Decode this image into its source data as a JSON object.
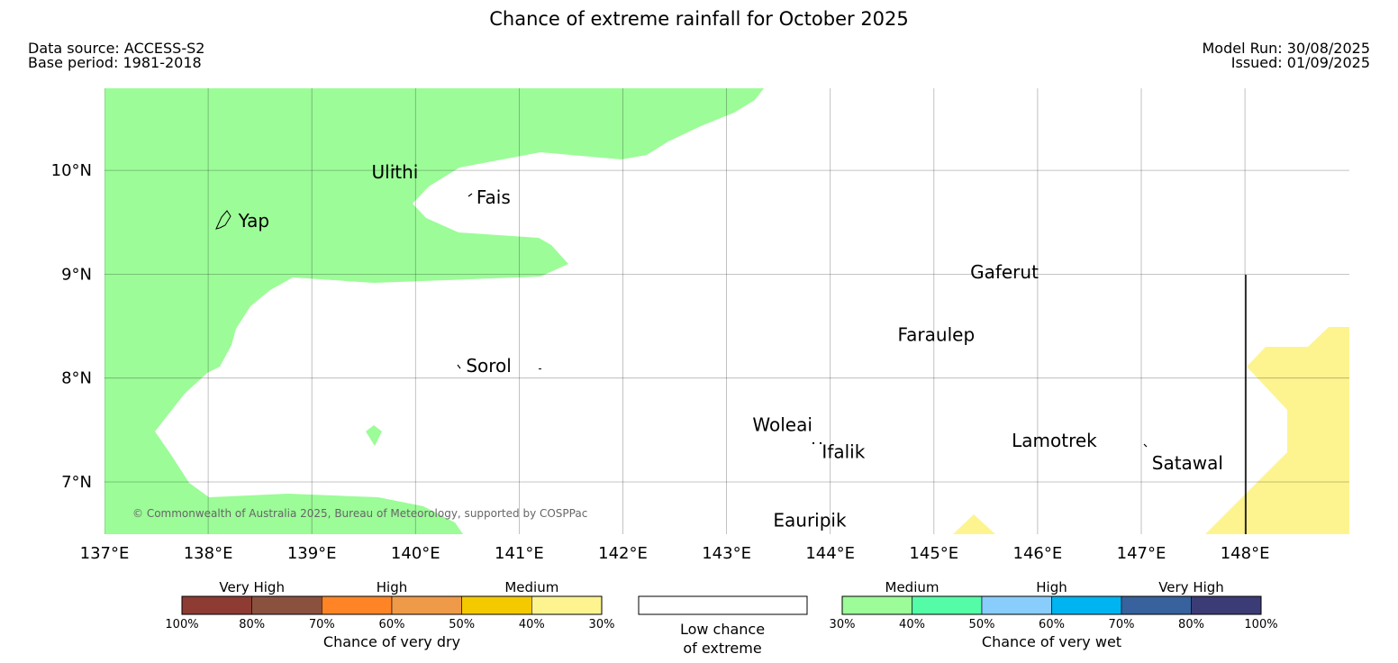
{
  "title": "Chance of extreme rainfall for October 2025",
  "source": {
    "data_source": "Data source: ACCESS-S2",
    "base_period": "Base period: 1981-2018",
    "model_run": "Model Run: 30/08/2025",
    "issued": "Issued: 01/09/2025"
  },
  "map": {
    "lon_range": [
      137,
      149
    ],
    "lat_range": [
      6.5,
      10.8
    ],
    "lon_ticks": [
      {
        "value": 137,
        "label": "137°E"
      },
      {
        "value": 138,
        "label": "138°E"
      },
      {
        "value": 139,
        "label": "139°E"
      },
      {
        "value": 140,
        "label": "140°E"
      },
      {
        "value": 141,
        "label": "141°E"
      },
      {
        "value": 142,
        "label": "142°E"
      },
      {
        "value": 143,
        "label": "143°E"
      },
      {
        "value": 144,
        "label": "144°E"
      },
      {
        "value": 145,
        "label": "145°E"
      },
      {
        "value": 146,
        "label": "146°E"
      },
      {
        "value": 147,
        "label": "147°E"
      },
      {
        "value": 148,
        "label": "148°E"
      }
    ],
    "lat_ticks": [
      {
        "value": 10,
        "label": "10°N"
      },
      {
        "value": 9,
        "label": "9°N"
      },
      {
        "value": 8,
        "label": "8°N"
      },
      {
        "value": 7,
        "label": "7°N"
      }
    ],
    "places": [
      {
        "name": "Yap",
        "lon": 138.1,
        "lat": 9.5
      },
      {
        "name": "Ulithi",
        "lon": 139.75,
        "lat": 10.0
      },
      {
        "name": "Fais",
        "lon": 140.5,
        "lat": 9.75
      },
      {
        "name": "Gaferut",
        "lon": 145.35,
        "lat": 9.02
      },
      {
        "name": "Faraulep",
        "lon": 144.65,
        "lat": 8.42
      },
      {
        "name": "Sorol",
        "lon": 140.4,
        "lat": 8.12
      },
      {
        "name": "Woleai",
        "lon": 143.25,
        "lat": 7.55
      },
      {
        "name": "Ifalik",
        "lon": 143.85,
        "lat": 7.3
      },
      {
        "name": "Lamotrek",
        "lon": 145.75,
        "lat": 7.4
      },
      {
        "name": "Satawal",
        "lon": 147.05,
        "lat": 7.2
      },
      {
        "name": "Eauripik",
        "lon": 143.45,
        "lat": 6.63
      }
    ],
    "copyright": "© Commonwealth of Australia 2025, Bureau of Meteorology, supported by COSPPac",
    "colors": {
      "wet_medium": "#9cfc98",
      "dry_medium": "#fdf48f",
      "land_outline": "#000000"
    }
  },
  "legend": {
    "dry": {
      "groups": [
        "Very High",
        "High",
        "Medium"
      ],
      "colors": [
        "#8d3b33",
        "#8b513f",
        "#fe8426",
        "#ef9a48",
        "#f4c900",
        "#fdf48f"
      ],
      "pct_labels": [
        "100%",
        "80%",
        "70%",
        "60%",
        "50%",
        "40%",
        "30%"
      ],
      "title": "Chance of very dry"
    },
    "neutral": {
      "line1": "Low chance",
      "line2": "of extreme",
      "color": "#ffffff"
    },
    "wet": {
      "groups": [
        "Medium",
        "High",
        "Very High"
      ],
      "colors": [
        "#9cfc98",
        "#55fca7",
        "#88cdfc",
        "#00b3f1",
        "#37629d",
        "#3b3c76"
      ],
      "pct_labels": [
        "30%",
        "40%",
        "50%",
        "60%",
        "70%",
        "80%",
        "100%"
      ],
      "title": "Chance of very wet"
    }
  }
}
